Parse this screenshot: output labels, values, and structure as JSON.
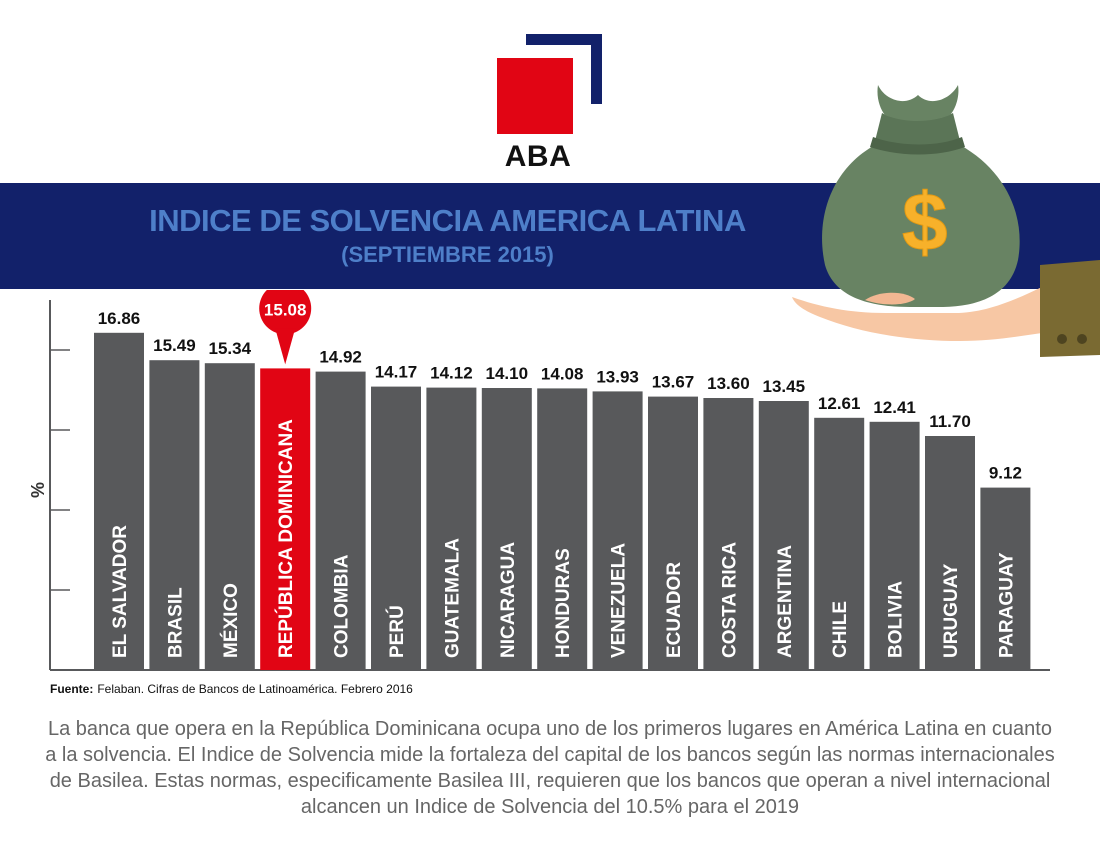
{
  "brand": {
    "logo_text": "ABA",
    "colors": {
      "red": "#e10514",
      "navy": "#12216a",
      "title_blue": "#4e7fc9"
    }
  },
  "banner": {
    "title": "INDICE DE SOLVENCIA AMERICA LATINA",
    "subtitle": "(SEPTIEMBRE 2015)"
  },
  "illustration": {
    "icon": "money-bag-in-hand-icon",
    "symbol": "$"
  },
  "chart_data": {
    "type": "bar",
    "title": "INDICE DE SOLVENCIA AMERICA LATINA",
    "subtitle": "(SEPTIEMBRE 2015)",
    "ylabel": "%",
    "xlabel": "",
    "ylim": [
      0,
      18.5
    ],
    "grid": false,
    "categories": [
      "EL SALVADOR",
      "BRASIL",
      "MÉXICO",
      "REPÚBLICA DOMINICANA",
      "COLOMBIA",
      "PERÚ",
      "GUATEMALA",
      "NICARAGUA",
      "HONDURAS",
      "VENEZUELA",
      "ECUADOR",
      "COSTA RICA",
      "ARGENTINA",
      "CHILE",
      "BOLIVIA",
      "URUGUAY",
      "PARAGUAY"
    ],
    "values": [
      16.86,
      15.49,
      15.34,
      15.08,
      14.92,
      14.17,
      14.12,
      14.1,
      14.08,
      13.93,
      13.67,
      13.6,
      13.45,
      12.61,
      12.41,
      11.7,
      9.12
    ],
    "value_labels": [
      "16.86",
      "15.49",
      "15.34",
      "15.08",
      "14.92",
      "14.17",
      "14.12",
      "14.10",
      "14.08",
      "13.93",
      "13.67",
      "13.60",
      "13.45",
      "12.61",
      "12.41",
      "11.70",
      "9.12"
    ],
    "highlight_index": 3,
    "colors": {
      "bar": "#58595b",
      "highlight": "#e10514",
      "axis": "#58595b"
    }
  },
  "source": {
    "label": "Fuente:",
    "text": "Felaban. Cifras de Bancos de Latinoamérica. Febrero 2016"
  },
  "description": "La banca que opera en la República Dominicana ocupa uno de los primeros lugares en América Latina en cuanto a la solvencia. El Indice de Solvencia mide la fortaleza del capital de los bancos según las normas internacionales de Basilea. Estas normas, especificamente Basilea III, requieren que los bancos que operan a nivel internacional alcancen un Indice de Solvencia del 10.5% para el 2019"
}
